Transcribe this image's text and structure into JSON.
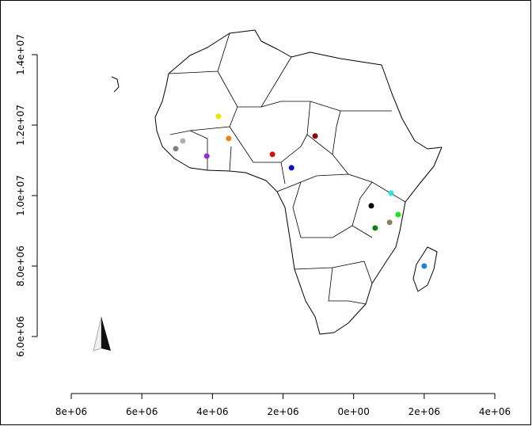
{
  "chart_data": {
    "type": "scatter",
    "x": [
      -3830000,
      -3540000,
      -4840000,
      -5040000,
      -4160000,
      -2300000,
      -1760000,
      -1090000,
      1060000,
      500000,
      1260000,
      1020000,
      610000,
      2000000
    ],
    "values": [
      12250000,
      11620000,
      11550000,
      11330000,
      11120000,
      11170000,
      10790000,
      11690000,
      10070000,
      9710000,
      9460000,
      9240000,
      9080000,
      8000000
    ],
    "colors": [
      "#e8e800",
      "#f08010",
      "#b0b0b0",
      "#808080",
      "#9030d0",
      "#d01010",
      "#1010c0",
      "#900000",
      "#30e0e0",
      "#000000",
      "#20e020",
      "#8a8060",
      "#108010",
      "#2080e0"
    ],
    "xlim": [
      -8000000,
      4000000
    ],
    "xticks": [
      {
        "value": -8000000,
        "label": "8e+06"
      },
      {
        "value": -6000000,
        "label": "6e+06"
      },
      {
        "value": -4000000,
        "label": "4e+06"
      },
      {
        "value": -2000000,
        "label": "2e+06"
      },
      {
        "value": 0,
        "label": "0e+00"
      },
      {
        "value": 2000000,
        "label": "2e+06"
      },
      {
        "value": 4000000,
        "label": "4e+06"
      }
    ],
    "ylim": [
      6000000,
      14000000
    ],
    "yticks": [
      {
        "value": 6000000,
        "label": "6.0e+06"
      },
      {
        "value": 8000000,
        "label": "8.0e+06"
      },
      {
        "value": 10000000,
        "label": "1.0e+07"
      },
      {
        "value": 12000000,
        "label": "1.2e+07"
      },
      {
        "value": 14000000,
        "label": "1.4e+07"
      }
    ]
  }
}
